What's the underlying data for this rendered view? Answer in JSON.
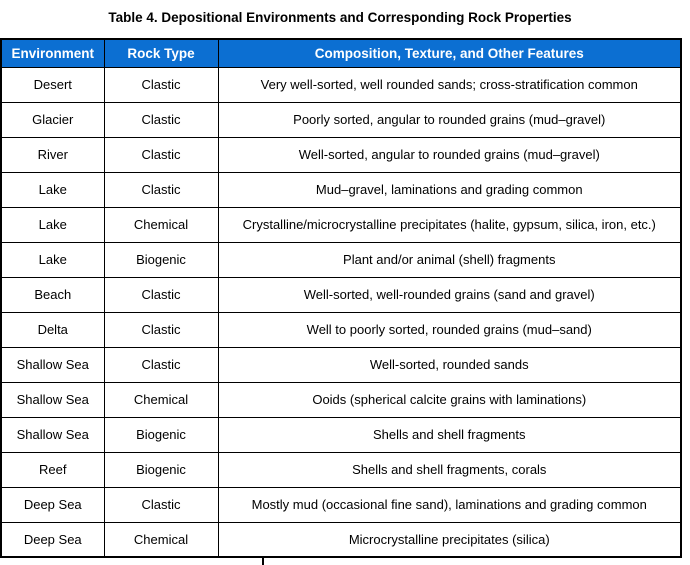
{
  "title": "Table 4. Depositional Environments and Corresponding Rock Properties",
  "table": {
    "header_bg_color": "#0c6fd2",
    "header_text_color": "#ffffff",
    "border_color": "#000000",
    "columns": [
      "Environment",
      "Rock Type",
      "Composition, Texture, and Other Features"
    ],
    "rows": [
      {
        "environment": "Desert",
        "rock_type": "Clastic",
        "features": "Very well-sorted, well rounded sands; cross-stratification common"
      },
      {
        "environment": "Glacier",
        "rock_type": "Clastic",
        "features": "Poorly sorted, angular to rounded grains (mud–gravel)"
      },
      {
        "environment": "River",
        "rock_type": "Clastic",
        "features": "Well-sorted, angular to rounded grains (mud–gravel)"
      },
      {
        "environment": "Lake",
        "rock_type": "Clastic",
        "features": "Mud–gravel, laminations and grading common"
      },
      {
        "environment": "Lake",
        "rock_type": "Chemical",
        "features": "Crystalline/microcrystalline precipitates (halite, gypsum, silica, iron, etc.)"
      },
      {
        "environment": "Lake",
        "rock_type": "Biogenic",
        "features": "Plant and/or animal (shell) fragments"
      },
      {
        "environment": "Beach",
        "rock_type": "Clastic",
        "features": "Well-sorted, well-rounded grains (sand and gravel)"
      },
      {
        "environment": "Delta",
        "rock_type": "Clastic",
        "features": "Well to poorly sorted, rounded grains (mud–sand)"
      },
      {
        "environment": "Shallow Sea",
        "rock_type": "Clastic",
        "features": "Well-sorted, rounded sands"
      },
      {
        "environment": "Shallow Sea",
        "rock_type": "Chemical",
        "features": "Ooids (spherical calcite grains with laminations)"
      },
      {
        "environment": "Shallow Sea",
        "rock_type": "Biogenic",
        "features": "Shells and shell fragments"
      },
      {
        "environment": "Reef",
        "rock_type": "Biogenic",
        "features": "Shells and shell fragments, corals"
      },
      {
        "environment": "Deep Sea",
        "rock_type": "Clastic",
        "features": "Mostly mud (occasional fine sand), laminations and grading common"
      },
      {
        "environment": "Deep Sea",
        "rock_type": "Chemical",
        "features": "Microcrystalline precipitates (silica)"
      }
    ]
  }
}
